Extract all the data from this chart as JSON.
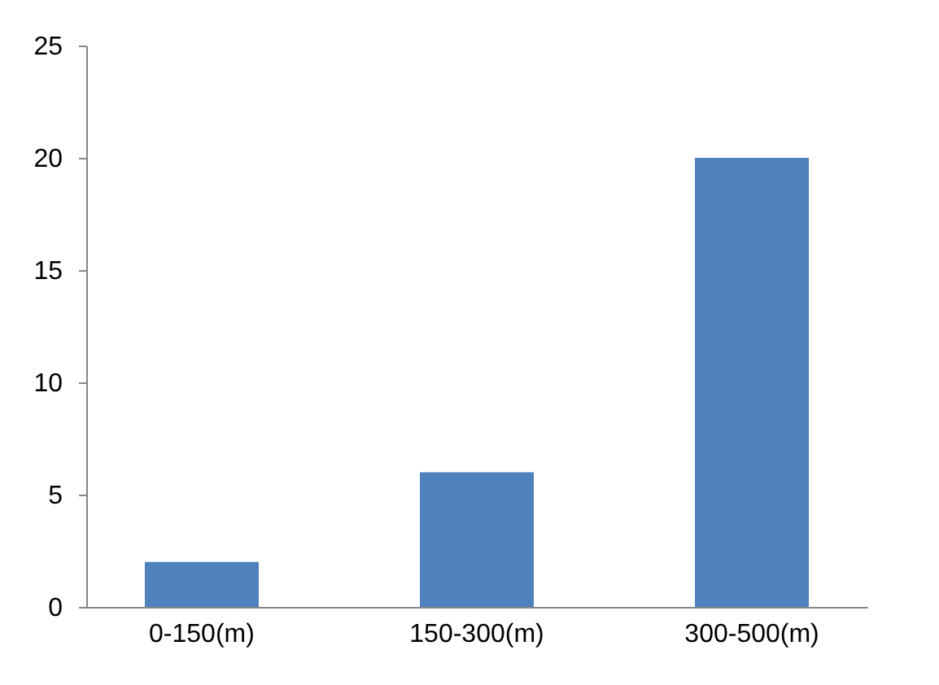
{
  "chart_data": {
    "type": "bar",
    "categories": [
      "0-150(m)",
      "150-300(m)",
      "300-500(m)"
    ],
    "values": [
      2,
      6,
      20
    ],
    "color": "#4f81bd",
    "ylim": [
      0,
      25
    ],
    "yticks": [
      0,
      5,
      10,
      15,
      20,
      25
    ],
    "grid": false
  }
}
